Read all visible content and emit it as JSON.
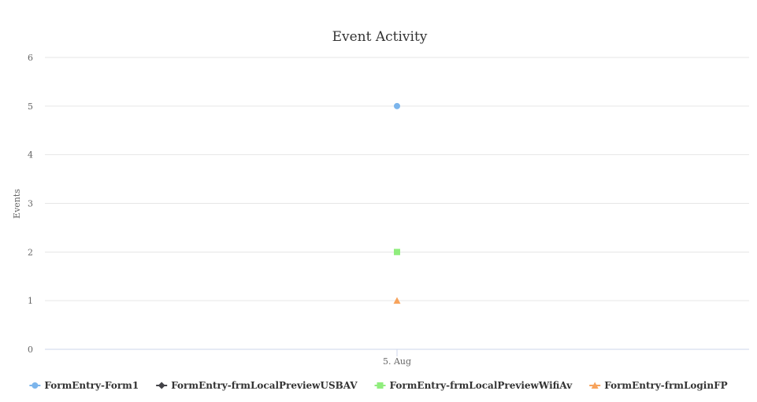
{
  "chart_data": {
    "type": "scatter",
    "title": "Event Activity",
    "xlabel": "",
    "ylabel": "Events",
    "categories": [
      "5. Aug"
    ],
    "ylim": [
      0,
      6
    ],
    "yticks": [
      0,
      1,
      2,
      3,
      4,
      5,
      6
    ],
    "grid": true,
    "legend_position": "bottom",
    "series": [
      {
        "name": "FormEntry-Form1",
        "values": [
          5
        ],
        "color": "#7cb5ec",
        "marker": "circle"
      },
      {
        "name": "FormEntry-frmLocalPreviewUSBAV",
        "values": [
          null
        ],
        "color": "#434348",
        "marker": "diamond"
      },
      {
        "name": "FormEntry-frmLocalPreviewWifiAv",
        "values": [
          2
        ],
        "color": "#90ed7d",
        "marker": "square"
      },
      {
        "name": "FormEntry-frmLoginFP",
        "values": [
          1
        ],
        "color": "#f7a35c",
        "marker": "triangle"
      }
    ]
  }
}
